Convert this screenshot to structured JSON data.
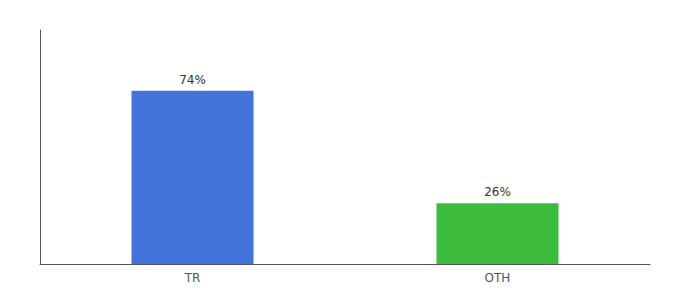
{
  "chart_data": {
    "type": "bar",
    "categories": [
      "TR",
      "OTH"
    ],
    "values": [
      74,
      26
    ],
    "value_labels": [
      "74%",
      "26%"
    ],
    "colors": [
      "#4472db",
      "#3dbb3d"
    ],
    "ylim": [
      0,
      100
    ],
    "yticks": [],
    "grid": false,
    "data_labels": true,
    "tick_labels": "x"
  }
}
